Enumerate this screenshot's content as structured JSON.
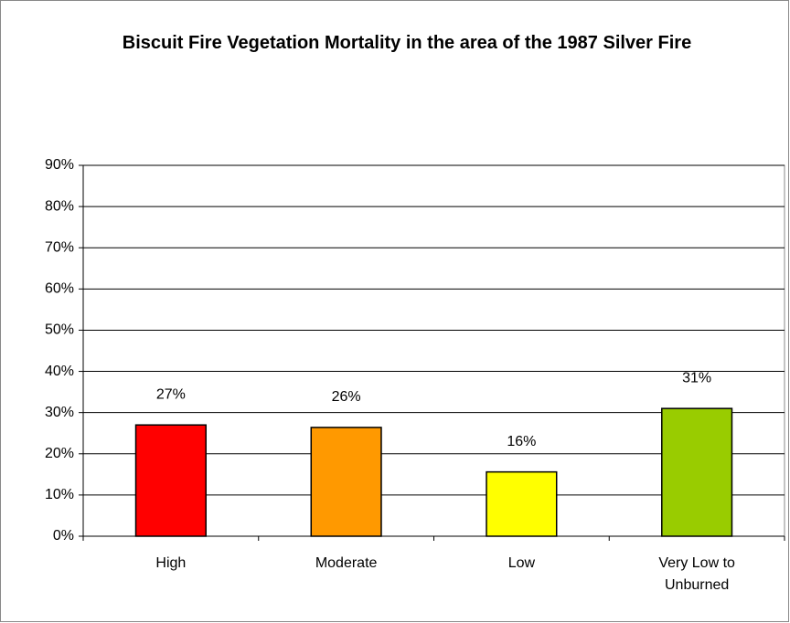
{
  "chart_data": {
    "type": "bar",
    "title": "Biscuit Fire Vegetation Mortality in the area of the 1987 Silver Fire",
    "categories": [
      "High",
      "Moderate",
      "Low",
      "Very Low to Unburned"
    ],
    "values": [
      27,
      26.4,
      15.6,
      31
    ],
    "value_labels": [
      "27%",
      "26%",
      "16%",
      "31%"
    ],
    "colors": [
      "#ff0000",
      "#ff9900",
      "#ffff00",
      "#99cc00"
    ],
    "ylim": [
      0,
      90
    ],
    "yticks": [
      {
        "value": 0,
        "label": "0%"
      },
      {
        "value": 10,
        "label": "10%"
      },
      {
        "value": 20,
        "label": "20%"
      },
      {
        "value": 30,
        "label": "30%"
      },
      {
        "value": 40,
        "label": "40%"
      },
      {
        "value": 50,
        "label": "50%"
      },
      {
        "value": 60,
        "label": "60%"
      },
      {
        "value": 70,
        "label": "70%"
      },
      {
        "value": 80,
        "label": "80%"
      },
      {
        "value": 90,
        "label": "90%"
      }
    ],
    "grid": true
  }
}
